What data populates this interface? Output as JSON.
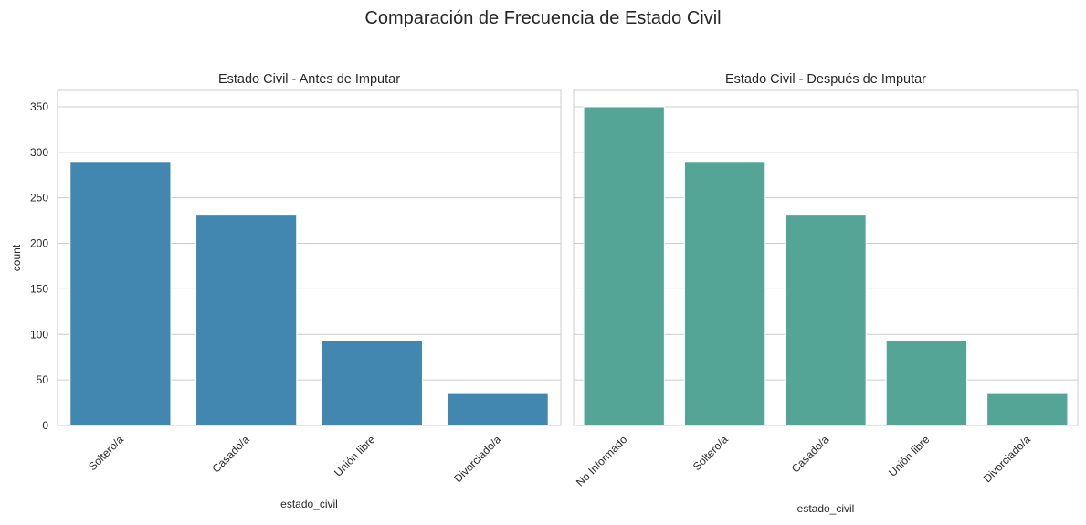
{
  "figure": {
    "title": "Comparación de Frecuencia de Estado Civil"
  },
  "chart_data": [
    {
      "type": "bar",
      "title": "Estado Civil - Antes de Imputar",
      "xlabel": "estado_civil",
      "ylabel": "count",
      "categories": [
        "Soltero/a",
        "Casado/a",
        "Unión libre",
        "Divorciado/a"
      ],
      "values": [
        290,
        231,
        93,
        36
      ],
      "ylim": [
        0,
        368
      ],
      "yticks": [
        0,
        50,
        100,
        150,
        200,
        250,
        300,
        350
      ],
      "color": "#4287b0",
      "grid": true
    },
    {
      "type": "bar",
      "title": "Estado Civil - Después de Imputar",
      "xlabel": "estado_civil",
      "ylabel": "",
      "categories": [
        "No Informado",
        "Soltero/a",
        "Casado/a",
        "Unión libre",
        "Divorciado/a"
      ],
      "values": [
        350,
        290,
        231,
        93,
        36
      ],
      "ylim": [
        0,
        368
      ],
      "yticks": [
        0,
        50,
        100,
        150,
        200,
        250,
        300,
        350
      ],
      "color": "#54a596",
      "grid": true,
      "shared_y": true
    }
  ]
}
